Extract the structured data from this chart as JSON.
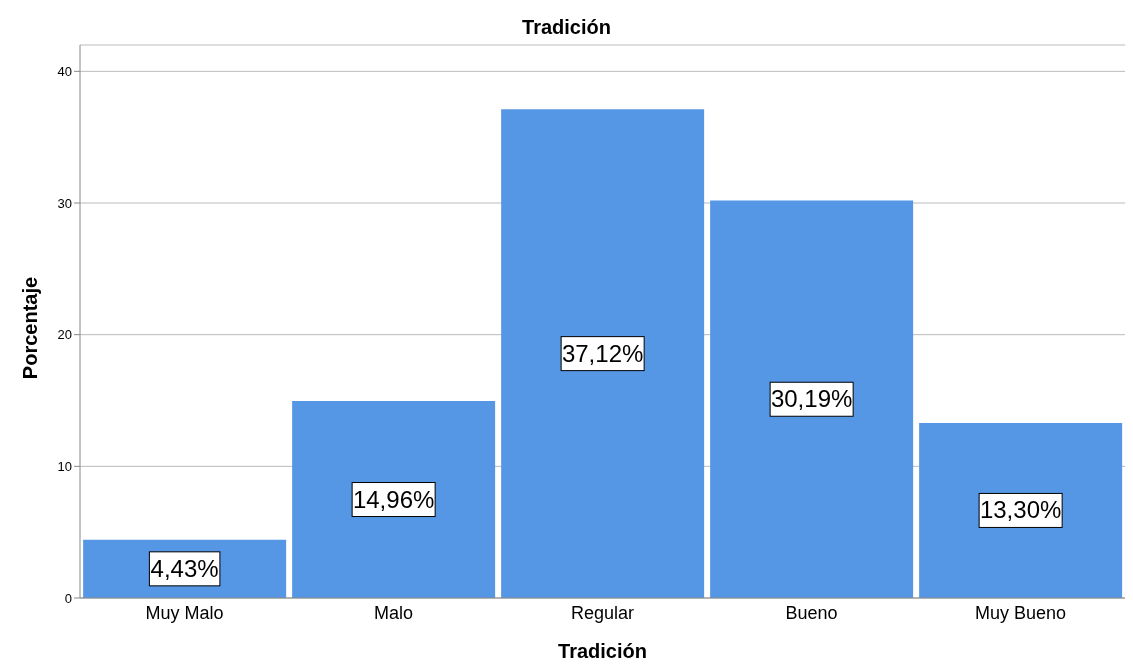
{
  "chart_data": {
    "type": "bar",
    "title": "Tradición",
    "xlabel": "Tradición",
    "ylabel": "Porcentaje",
    "categories": [
      "Muy Malo",
      "Malo",
      "Regular",
      "Bueno",
      "Muy Bueno"
    ],
    "values": [
      4.43,
      14.96,
      37.12,
      30.19,
      13.3
    ],
    "value_labels": [
      "4,43%",
      "14,96%",
      "37,12%",
      "30,19%",
      "13,30%"
    ],
    "color": "#5596e5",
    "ylim": [
      0,
      42
    ],
    "yticks": [
      0,
      10,
      20,
      30,
      40
    ],
    "grid": "y"
  }
}
